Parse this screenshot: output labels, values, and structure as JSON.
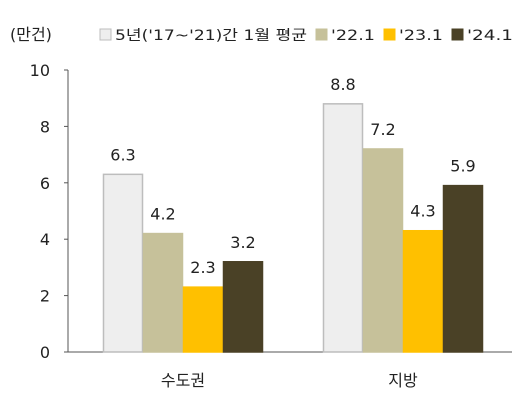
{
  "chart_data": {
    "type": "bar",
    "unit_label": "(만건)",
    "categories": [
      "수도권",
      "지방"
    ],
    "series": [
      {
        "name": "5년('17~'21)간 1월 평균",
        "color": "#eeeeee",
        "stroke": "#bdbdbd",
        "values": [
          6.3,
          8.8
        ]
      },
      {
        "name": "'22.1",
        "color": "#c6c19a",
        "stroke": "#c6c19a",
        "values": [
          4.2,
          7.2
        ]
      },
      {
        "name": "'23.1",
        "color": "#ffc000",
        "stroke": "#ffc000",
        "values": [
          2.3,
          4.3
        ]
      },
      {
        "name": "'24.1",
        "color": "#4a4126",
        "stroke": "#4a4126",
        "values": [
          3.2,
          5.9
        ]
      }
    ],
    "ylim": [
      0,
      10
    ],
    "yticks": [
      0,
      2,
      4,
      6,
      8,
      10
    ],
    "grid": false,
    "legend": "top"
  }
}
